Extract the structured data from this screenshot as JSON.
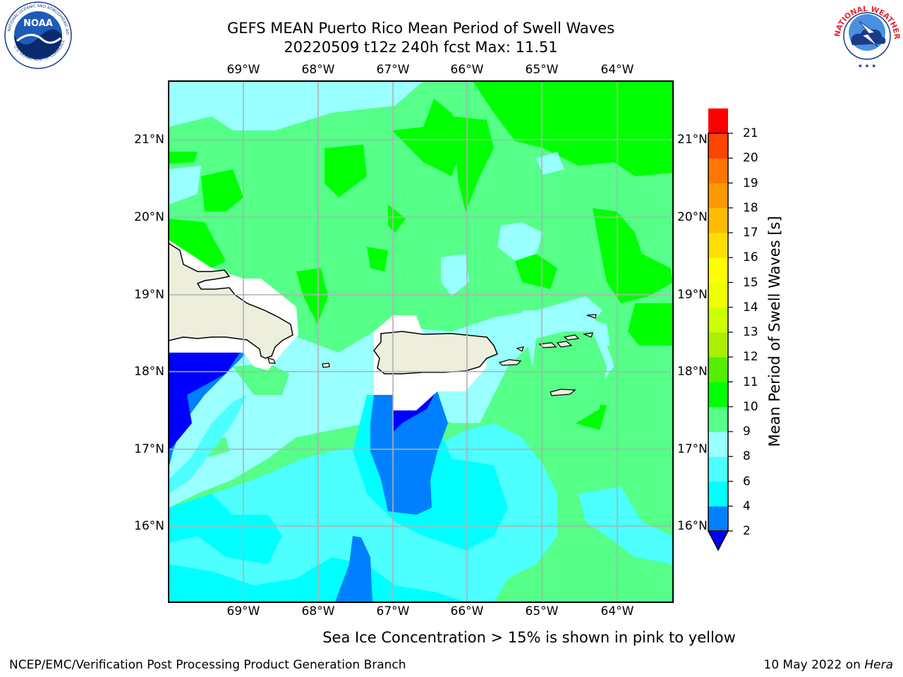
{
  "title": {
    "line1": "GEFS MEAN Puerto Rico Mean Period of Swell Waves",
    "line2": "20220509 t12z 240h fcst   Max: 11.51"
  },
  "map": {
    "x_ticks": [
      "69°W",
      "68°W",
      "67°W",
      "66°W",
      "65°W",
      "64°W"
    ],
    "y_ticks": [
      "21°N",
      "20°N",
      "19°N",
      "18°N",
      "17°N",
      "16°N"
    ],
    "lon_range": [
      -70.0,
      -63.25
    ],
    "lat_range": [
      15.0,
      21.75
    ],
    "grid": true,
    "ocean_colors": {
      "light_cyan": "#99ffff",
      "cyan": "#00ffff",
      "mid_cyan": "#4dffff",
      "light_green": "#55ff88",
      "green": "#00ff00",
      "blue": "#0080ff",
      "dark_blue": "#0000ff",
      "land": "#eeeedd"
    }
  },
  "colorbar": {
    "label": "Mean Period of Swell Waves [s]",
    "levels": [
      2,
      4,
      6,
      8,
      9,
      10,
      11,
      12,
      13,
      14,
      15,
      16,
      17,
      18,
      19,
      20,
      21
    ],
    "tick_labels": [
      "2",
      "4",
      "6",
      "8",
      "9",
      "10",
      "11",
      "12",
      "13",
      "14",
      "15",
      "16",
      "17",
      "18",
      "19",
      "20",
      "21"
    ],
    "colors": [
      "#0080ff",
      "#00ffff",
      "#4dffff",
      "#99ffff",
      "#55ff88",
      "#00ff00",
      "#55ee00",
      "#aaee00",
      "#ccff00",
      "#eeff00",
      "#ffff00",
      "#ffdd00",
      "#ffbb00",
      "#ff9900",
      "#ff7700",
      "#ff4400",
      "#ff0000"
    ],
    "extend_low_color": "#0000ff"
  },
  "footnote": "Sea Ice Concentration > 15% is shown in pink to yellow",
  "credits": {
    "left": "NCEP/EMC/Verification Post Processing Product Generation Branch",
    "right_date": "10 May 2022 on",
    "right_host": "Hera"
  },
  "logos": {
    "noaa_text": "NOAA",
    "nws_text": "NATIONAL WEATHER SERVICE"
  }
}
